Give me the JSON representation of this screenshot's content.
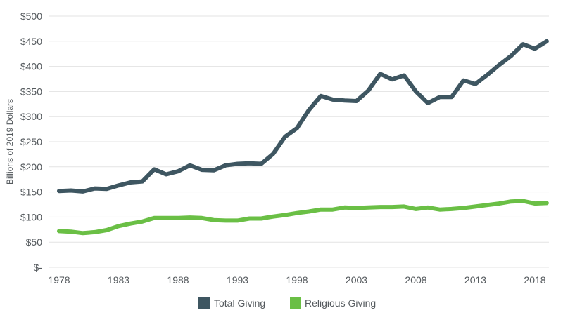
{
  "chart_data": {
    "type": "line",
    "title": "",
    "xlabel": "",
    "ylabel": "Billions of 2019 Dollars",
    "xlim": [
      1978,
      2019
    ],
    "ylim": [
      0,
      500
    ],
    "y_ticks": [
      0,
      50,
      100,
      150,
      200,
      250,
      300,
      350,
      400,
      450,
      500
    ],
    "y_tick_labels": [
      "$-",
      "$50",
      "$100",
      "$150",
      "$200",
      "$250",
      "$300",
      "$350",
      "$400",
      "$450",
      "$500"
    ],
    "x_ticks": [
      1978,
      1983,
      1988,
      1993,
      1998,
      2003,
      2008,
      2013,
      2018
    ],
    "x_tick_labels": [
      "1978",
      "1983",
      "1988",
      "1993",
      "1998",
      "2003",
      "2008",
      "2013",
      "2018"
    ],
    "grid": "horizontal",
    "legend_position": "bottom-center",
    "x": [
      1978,
      1979,
      1980,
      1981,
      1982,
      1983,
      1984,
      1985,
      1986,
      1987,
      1988,
      1989,
      1990,
      1991,
      1992,
      1993,
      1994,
      1995,
      1996,
      1997,
      1998,
      1999,
      2000,
      2001,
      2002,
      2003,
      2004,
      2005,
      2006,
      2007,
      2008,
      2009,
      2010,
      2011,
      2012,
      2013,
      2014,
      2015,
      2016,
      2017,
      2018,
      2019
    ],
    "series": [
      {
        "name": "Total Giving",
        "color": "#3e5661",
        "values": [
          152,
          153,
          151,
          157,
          156,
          163,
          169,
          171,
          195,
          185,
          191,
          203,
          194,
          193,
          203,
          206,
          207,
          206,
          226,
          260,
          277,
          313,
          341,
          334,
          332,
          331,
          352,
          385,
          374,
          382,
          350,
          327,
          339,
          339,
          372,
          365,
          383,
          403,
          421,
          444,
          435,
          450
        ]
      },
      {
        "name": "Religious Giving",
        "color": "#6abf45",
        "values": [
          72,
          71,
          68,
          70,
          74,
          82,
          87,
          91,
          98,
          98,
          98,
          99,
          98,
          94,
          93,
          93,
          97,
          97,
          101,
          104,
          108,
          111,
          115,
          115,
          119,
          118,
          119,
          120,
          120,
          121,
          116,
          119,
          115,
          116,
          118,
          121,
          124,
          127,
          131,
          132,
          127,
          128
        ]
      }
    ]
  }
}
